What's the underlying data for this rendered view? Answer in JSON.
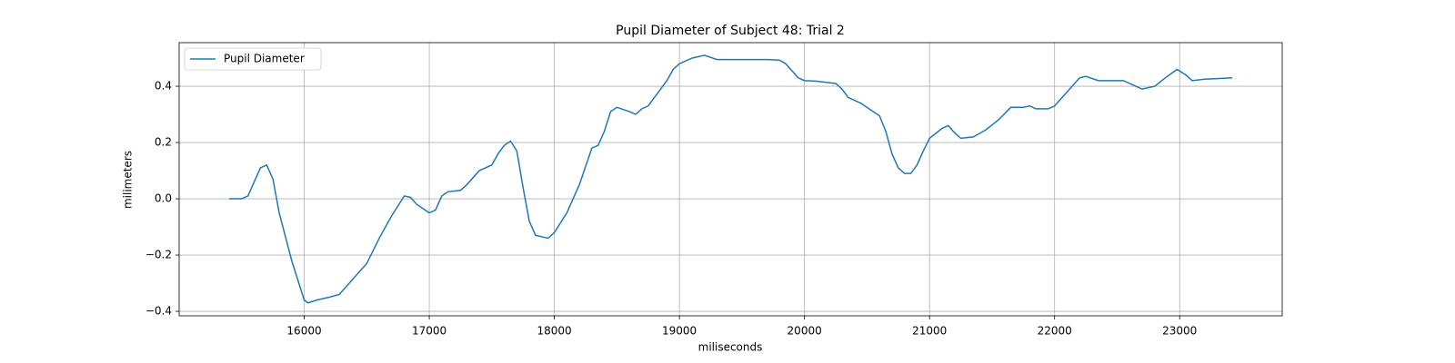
{
  "chart_data": {
    "type": "line",
    "title": "Pupil Diameter of Subject 48: Trial 2",
    "x_label": "miliseconds",
    "y_label": "milimeters",
    "legend": "upper left",
    "grid": true,
    "xlim": [
      15000,
      23820
    ],
    "ylim": [
      -0.416,
      0.555
    ],
    "xticks": [
      16000,
      17000,
      18000,
      19000,
      20000,
      21000,
      22000,
      23000
    ],
    "yticks": [
      {
        "value": -0.4,
        "label": "−0.4"
      },
      {
        "value": -0.2,
        "label": "−0.2"
      },
      {
        "value": 0,
        "label": "0.0"
      },
      0.2,
      0.4
    ],
    "x": [
      15400,
      15500,
      15550,
      15600,
      15650,
      15700,
      15750,
      15800,
      15900,
      16000,
      16030,
      16100,
      16200,
      16280,
      16400,
      16500,
      16600,
      16700,
      16800,
      16850,
      16900,
      17000,
      17050,
      17100,
      17150,
      17250,
      17300,
      17400,
      17500,
      17550,
      17600,
      17650,
      17700,
      17750,
      17800,
      17850,
      17950,
      18000,
      18100,
      18200,
      18300,
      18350,
      18400,
      18450,
      18500,
      18600,
      18650,
      18700,
      18750,
      18800,
      18900,
      18950,
      19000,
      19100,
      19200,
      19300,
      19500,
      19700,
      19800,
      19850,
      19950,
      20000,
      20100,
      20250,
      20300,
      20350,
      20450,
      20550,
      20600,
      20650,
      20700,
      20750,
      20800,
      20850,
      20900,
      20950,
      21000,
      21100,
      21150,
      21200,
      21250,
      21350,
      21450,
      21550,
      21650,
      21750,
      21800,
      21850,
      21950,
      22000,
      22100,
      22200,
      22250,
      22350,
      22450,
      22550,
      22650,
      22700,
      22800,
      22900,
      22980,
      23050,
      23100,
      23200,
      23300,
      23420
    ],
    "series": [
      {
        "name": "Pupil Diameter",
        "color": "#1f77b4",
        "values": [
          0,
          0,
          0.01,
          0.06,
          0.11,
          0.12,
          0.07,
          -0.05,
          -0.22,
          -0.36,
          -0.37,
          -0.36,
          -0.35,
          -0.34,
          -0.28,
          -0.23,
          -0.14,
          -0.06,
          0.01,
          0.005,
          -0.02,
          -0.05,
          -0.04,
          0.01,
          0.025,
          0.03,
          0.05,
          0.1,
          0.12,
          0.16,
          0.19,
          0.205,
          0.17,
          0.04,
          -0.08,
          -0.13,
          -0.14,
          -0.12,
          -0.05,
          0.05,
          0.18,
          0.19,
          0.24,
          0.31,
          0.325,
          0.31,
          0.3,
          0.32,
          0.33,
          0.36,
          0.42,
          0.46,
          0.48,
          0.5,
          0.51,
          0.495,
          0.495,
          0.495,
          0.493,
          0.48,
          0.43,
          0.42,
          0.418,
          0.41,
          0.39,
          0.36,
          0.34,
          0.31,
          0.295,
          0.24,
          0.16,
          0.11,
          0.09,
          0.09,
          0.12,
          0.17,
          0.215,
          0.25,
          0.26,
          0.235,
          0.215,
          0.22,
          0.245,
          0.28,
          0.325,
          0.325,
          0.33,
          0.32,
          0.32,
          0.33,
          0.38,
          0.43,
          0.435,
          0.42,
          0.42,
          0.42,
          0.4,
          0.39,
          0.4,
          0.435,
          0.46,
          0.44,
          0.42,
          0.425,
          0.427,
          0.43
        ]
      }
    ]
  }
}
